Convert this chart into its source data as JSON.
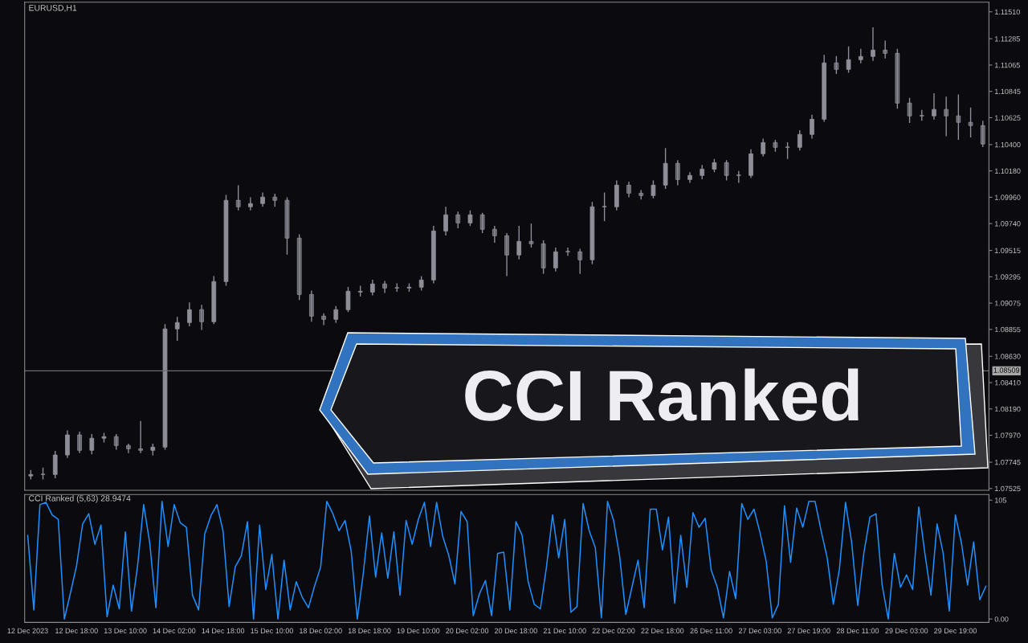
{
  "chart_data": [
    {
      "type": "candlestick",
      "title": "EURUSD,H1",
      "categories": [
        null,
        null,
        null,
        null,
        null,
        null,
        null,
        null,
        null,
        null,
        null,
        null,
        null,
        null,
        null,
        null,
        null,
        null,
        null,
        null,
        null,
        null,
        null,
        null,
        null,
        null,
        null,
        null,
        null,
        null,
        null,
        null,
        null,
        null,
        null,
        null,
        null,
        null,
        null,
        null,
        null,
        null,
        null,
        null,
        null,
        null,
        null,
        null,
        null,
        null,
        null,
        null,
        null,
        null,
        null,
        null,
        null,
        null,
        null,
        null,
        null,
        null,
        null,
        null,
        null,
        null,
        null,
        null,
        null,
        null,
        null,
        null,
        null,
        null,
        null,
        null,
        null,
        null,
        null
      ],
      "ohlc": [
        [
          1.0763,
          1.0768,
          1.076,
          1.07642
        ],
        [
          1.07642,
          1.077,
          1.076,
          1.07642
        ],
        [
          1.07642,
          1.0784,
          1.0761,
          1.07805
        ],
        [
          1.07805,
          1.0801,
          1.0778,
          1.07973
        ],
        [
          1.07973,
          1.08,
          1.0782,
          1.07844
        ],
        [
          1.07844,
          1.0798,
          1.0781,
          1.07945
        ],
        [
          1.07945,
          1.0799,
          1.0791,
          1.07959
        ],
        [
          1.07959,
          1.0798,
          1.0785,
          1.07884
        ],
        [
          1.07884,
          1.079,
          1.0782,
          1.07857
        ],
        [
          1.07857,
          1.0809,
          1.0782,
          1.07844
        ],
        [
          1.07844,
          1.079,
          1.078,
          1.07871
        ],
        [
          1.07871,
          1.089,
          1.0785,
          1.08859
        ],
        [
          1.08859,
          1.0896,
          1.0876,
          1.08912
        ],
        [
          1.08912,
          1.0908,
          1.0888,
          1.0902
        ],
        [
          1.0902,
          1.0906,
          1.0885,
          1.08919
        ],
        [
          1.08919,
          1.093,
          1.089,
          1.09255
        ],
        [
          1.09255,
          1.0998,
          1.0922,
          1.09934
        ],
        [
          1.09934,
          1.1006,
          1.0985,
          1.0988
        ],
        [
          1.0988,
          1.0996,
          1.0985,
          1.09907
        ],
        [
          1.09907,
          1.1,
          1.0988,
          1.09961
        ],
        [
          1.09961,
          1.0999,
          1.0988,
          1.09934
        ],
        [
          1.09934,
          1.0996,
          1.0948,
          1.09618
        ],
        [
          1.09618,
          1.0965,
          1.091,
          1.09147
        ],
        [
          1.09147,
          1.0918,
          1.0892,
          1.08966
        ],
        [
          1.08966,
          1.0899,
          1.0889,
          1.08939
        ],
        [
          1.08939,
          1.0905,
          1.0891,
          1.0902
        ],
        [
          1.0902,
          1.0921,
          1.09,
          1.09174
        ],
        [
          1.09174,
          1.0922,
          1.0913,
          1.09167
        ],
        [
          1.09167,
          1.0927,
          1.0914,
          1.09235
        ],
        [
          1.09235,
          1.0926,
          1.0916,
          1.09201
        ],
        [
          1.09201,
          1.0924,
          1.0917,
          1.09201
        ],
        [
          1.09201,
          1.0924,
          1.0917,
          1.09208
        ],
        [
          1.09208,
          1.093,
          1.0918,
          1.09268
        ],
        [
          1.09268,
          1.0972,
          1.0924,
          1.09678
        ],
        [
          1.09678,
          1.0988,
          1.0964,
          1.09813
        ],
        [
          1.09813,
          1.0984,
          1.097,
          1.09745
        ],
        [
          1.09745,
          1.0985,
          1.0972,
          1.09813
        ],
        [
          1.09813,
          1.0983,
          1.0966,
          1.09692
        ],
        [
          1.09692,
          1.0972,
          1.0958,
          1.09638
        ],
        [
          1.09638,
          1.0966,
          1.093,
          1.09477
        ],
        [
          1.09477,
          1.0972,
          1.0944,
          1.09591
        ],
        [
          1.09591,
          1.0974,
          1.0954,
          1.09571
        ],
        [
          1.09571,
          1.096,
          1.0932,
          1.09369
        ],
        [
          1.09369,
          1.0954,
          1.0934,
          1.09504
        ],
        [
          1.09504,
          1.0954,
          1.0947,
          1.09504
        ],
        [
          1.09504,
          1.0953,
          1.0932,
          1.09437
        ],
        [
          1.09437,
          1.0992,
          1.094,
          1.0988
        ],
        [
          1.0988,
          1.1,
          1.0976,
          1.0988
        ],
        [
          1.0988,
          1.101,
          1.0985,
          1.10061
        ],
        [
          1.10061,
          1.1009,
          1.0996,
          1.09994
        ],
        [
          1.09994,
          1.1002,
          1.0994,
          1.09974
        ],
        [
          1.09974,
          1.101,
          1.0995,
          1.10061
        ],
        [
          1.10061,
          1.1037,
          1.1003,
          1.10243
        ],
        [
          1.10243,
          1.1027,
          1.1006,
          1.10108
        ],
        [
          1.10108,
          1.1017,
          1.1008,
          1.10142
        ],
        [
          1.10142,
          1.1023,
          1.1011,
          1.10195
        ],
        [
          1.10195,
          1.1028,
          1.1017,
          1.10249
        ],
        [
          1.10249,
          1.1027,
          1.101,
          1.10142
        ],
        [
          1.10142,
          1.1018,
          1.1008,
          1.10142
        ],
        [
          1.10142,
          1.1036,
          1.1012,
          1.10323
        ],
        [
          1.10323,
          1.1045,
          1.103,
          1.10417
        ],
        [
          1.10417,
          1.1044,
          1.1034,
          1.10377
        ],
        [
          1.10377,
          1.1042,
          1.1028,
          1.10377
        ],
        [
          1.10377,
          1.1052,
          1.1035,
          1.10485
        ],
        [
          1.10485,
          1.1065,
          1.1045,
          1.10612
        ],
        [
          1.10612,
          1.1115,
          1.1059,
          1.11083
        ],
        [
          1.11083,
          1.1114,
          1.1099,
          1.11029
        ],
        [
          1.11029,
          1.1122,
          1.11,
          1.1111
        ],
        [
          1.1111,
          1.112,
          1.1108,
          1.11137
        ],
        [
          1.11137,
          1.1138,
          1.111,
          1.1119
        ],
        [
          1.1119,
          1.1127,
          1.1112,
          1.11163
        ],
        [
          1.11163,
          1.112,
          1.107,
          1.10747
        ],
        [
          1.10747,
          1.1079,
          1.1058,
          1.1064
        ],
        [
          1.1064,
          1.1069,
          1.106,
          1.1064
        ],
        [
          1.1064,
          1.1083,
          1.1061,
          1.10694
        ],
        [
          1.10694,
          1.108,
          1.1047,
          1.1064
        ],
        [
          1.1064,
          1.1082,
          1.1044,
          1.10586
        ],
        [
          1.10586,
          1.1071,
          1.1046,
          1.10559
        ],
        [
          1.10559,
          1.106,
          1.1038,
          1.10405
        ]
      ],
      "color": "#8e8e98",
      "ylim": [
        1.0751,
        1.1159
      ],
      "yticks": [
        {
          "value": 1.07525,
          "label": "1.07525"
        },
        {
          "value": 1.07745,
          "label": "1.07745"
        },
        {
          "value": 1.0797,
          "label": "1.07970"
        },
        {
          "value": 1.0819,
          "label": "1.08190"
        },
        {
          "value": 1.0841,
          "label": "1.08410"
        },
        {
          "value": 1.0863,
          "label": "1.08630"
        },
        {
          "value": 1.08855,
          "label": "1.08855"
        },
        {
          "value": 1.09075,
          "label": "1.09075"
        },
        {
          "value": 1.09295,
          "label": "1.09295"
        },
        {
          "value": 1.09515,
          "label": "1.09515"
        },
        {
          "value": 1.0974,
          "label": "1.09740"
        },
        {
          "value": 1.0996,
          "label": "1.09960"
        },
        {
          "value": 1.1018,
          "label": "1.10180"
        },
        {
          "value": 1.104,
          "label": "1.10400"
        },
        {
          "value": 1.10625,
          "label": "1.10625"
        },
        {
          "value": 1.10845,
          "label": "1.10845"
        },
        {
          "value": 1.11065,
          "label": "1.11065"
        },
        {
          "value": 1.11285,
          "label": "1.11285"
        },
        {
          "value": 1.1151,
          "label": "1.11510"
        }
      ],
      "ref_lines": [
        {
          "axis": "y",
          "value": 1.08509,
          "label": "1.08509",
          "color": "#6e6e6e"
        }
      ],
      "annotations": [
        "CCI Ranked"
      ],
      "tick_labels": "y"
    },
    {
      "type": "line",
      "title": "CCI Ranked (5,63) 28.9474",
      "categories": [
        "12 Dec 2023",
        null,
        null,
        null,
        null,
        null,
        null,
        null,
        "12 Dec 18:00",
        null,
        null,
        null,
        null,
        null,
        null,
        null,
        "13 Dec 10:00",
        null,
        null,
        null,
        null,
        null,
        null,
        null,
        "14 Dec 02:00",
        null,
        null,
        null,
        null,
        null,
        null,
        null,
        "14 Dec 18:00",
        null,
        null,
        null,
        null,
        null,
        null,
        null,
        "15 Dec 10:00",
        null,
        null,
        null,
        null,
        null,
        null,
        null,
        "18 Dec 02:00",
        null,
        null,
        null,
        null,
        null,
        null,
        null,
        "18 Dec 18:00",
        null,
        null,
        null,
        null,
        null,
        null,
        null,
        "19 Dec 10:00",
        null,
        null,
        null,
        null,
        null,
        null,
        null,
        "20 Dec 02:00",
        null,
        null,
        null,
        null,
        null,
        null,
        null,
        "20 Dec 18:00",
        null,
        null,
        null,
        null,
        null,
        null,
        null,
        "21 Dec 10:00",
        null,
        null,
        null,
        null,
        null,
        null,
        null,
        "22 Dec 02:00",
        null,
        null,
        null,
        null,
        null,
        null,
        null,
        "22 Dec 18:00",
        null,
        null,
        null,
        null,
        null,
        null,
        null,
        "26 Dec 11:00",
        null,
        null,
        null,
        null,
        null,
        null,
        null,
        "27 Dec 03:00",
        null,
        null,
        null,
        null,
        null,
        null,
        null,
        "27 Dec 19:00",
        null,
        null,
        null,
        null,
        null,
        null,
        null,
        "28 Dec 11:00",
        null,
        null,
        null,
        null,
        null,
        null,
        null,
        "29 Dec 03:00",
        null,
        null,
        null,
        null,
        null,
        null,
        null,
        "29 Dec 19:00",
        null,
        null,
        null,
        null,
        null
      ],
      "series": [
        {
          "color": "#1e90ff",
          "values": [
            74,
            8,
            101,
            103,
            92,
            88,
            0,
            23,
            47,
            84,
            93,
            66,
            83,
            2,
            30,
            9,
            77,
            7,
            47,
            101,
            67,
            10,
            104,
            64,
            101,
            85,
            81,
            21,
            8,
            75,
            91,
            101,
            78,
            11,
            46,
            56,
            86,
            0,
            83,
            26,
            57,
            0,
            52,
            8,
            33,
            19,
            10,
            29,
            46,
            104,
            93,
            78,
            87,
            60,
            0,
            41,
            91,
            37,
            76,
            36,
            77,
            21,
            87,
            66,
            88,
            103,
            64,
            103,
            73,
            56,
            31,
            95,
            86,
            3,
            22,
            34,
            3,
            58,
            59,
            8,
            86,
            74,
            33,
            13,
            9,
            46,
            92,
            54,
            88,
            6,
            11,
            102,
            78,
            63,
            1,
            104,
            87,
            55,
            4,
            28,
            52,
            10,
            97,
            97,
            61,
            90,
            14,
            74,
            28,
            94,
            81,
            89,
            43,
            28,
            1,
            42,
            18,
            102,
            88,
            97,
            76,
            51,
            1,
            13,
            100,
            50,
            98,
            81,
            104,
            104,
            78,
            54,
            13,
            44,
            103,
            68,
            12,
            58,
            90,
            93,
            30,
            0,
            58,
            28,
            39,
            26,
            99,
            58,
            21,
            84,
            58,
            7,
            92,
            67,
            30,
            68,
            17,
            29
          ]
        }
      ],
      "ylim": [
        -3,
        110
      ],
      "yticks": [
        {
          "value": 0,
          "label": "0.00"
        },
        105
      ]
    }
  ]
}
